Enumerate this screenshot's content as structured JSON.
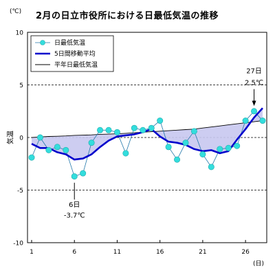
{
  "chart_data": {
    "type": "line",
    "title": "2月の日立市役所における日最低気温の推移",
    "ylabel": "気温",
    "yunit": "(℃)",
    "xunit": "(日)",
    "ylim": [
      -10,
      10
    ],
    "xlim": [
      1,
      28
    ],
    "yticks": [
      10,
      5,
      0,
      -5,
      -10
    ],
    "xticks": [
      1,
      6,
      11,
      16,
      21,
      26
    ],
    "grid": "dashed-horizontal",
    "legend_position": "top-left",
    "x": [
      1,
      2,
      3,
      4,
      5,
      6,
      7,
      8,
      9,
      10,
      11,
      12,
      13,
      14,
      15,
      16,
      17,
      18,
      19,
      20,
      21,
      22,
      23,
      24,
      25,
      26,
      27,
      28
    ],
    "series": [
      {
        "name": "日最低気温",
        "color": "#33dddd",
        "values": [
          -1.9,
          0.0,
          -1.2,
          -0.9,
          -1.2,
          -3.7,
          -3.4,
          -0.5,
          0.7,
          0.7,
          0.5,
          -1.5,
          0.9,
          0.7,
          0.9,
          1.6,
          -0.9,
          -2.1,
          -0.5,
          0.6,
          -1.6,
          -2.8,
          -1.1,
          -1.0,
          -0.8,
          1.6,
          2.5,
          1.6
        ]
      },
      {
        "name": "5日間移動平均",
        "color": "#0000cc",
        "values": [
          -0.6,
          -1.0,
          -1.0,
          -1.4,
          -1.6,
          -2.1,
          -2.0,
          -1.6,
          -0.9,
          -0.3,
          0.1,
          0.2,
          0.3,
          0.5,
          0.8,
          0.1,
          -0.4,
          -0.5,
          -0.7,
          -1.1,
          -1.3,
          -1.2,
          -1.5,
          -1.3,
          -0.2,
          0.8,
          1.9,
          2.8
        ]
      },
      {
        "name": "平年日最低気温",
        "color": "#000000",
        "values": [
          0.0,
          0.05,
          0.1,
          0.12,
          0.15,
          0.2,
          0.22,
          0.25,
          0.3,
          0.32,
          0.35,
          0.4,
          0.45,
          0.5,
          0.55,
          0.6,
          0.65,
          0.7,
          0.75,
          0.8,
          0.9,
          1.0,
          1.1,
          1.2,
          1.3,
          1.4,
          1.5,
          1.6
        ]
      }
    ],
    "fill_color": "#c8c8f0",
    "annotations": [
      {
        "day": "6日",
        "temp": "-3.7℃"
      },
      {
        "day": "27日",
        "temp": "2.5℃"
      }
    ]
  }
}
